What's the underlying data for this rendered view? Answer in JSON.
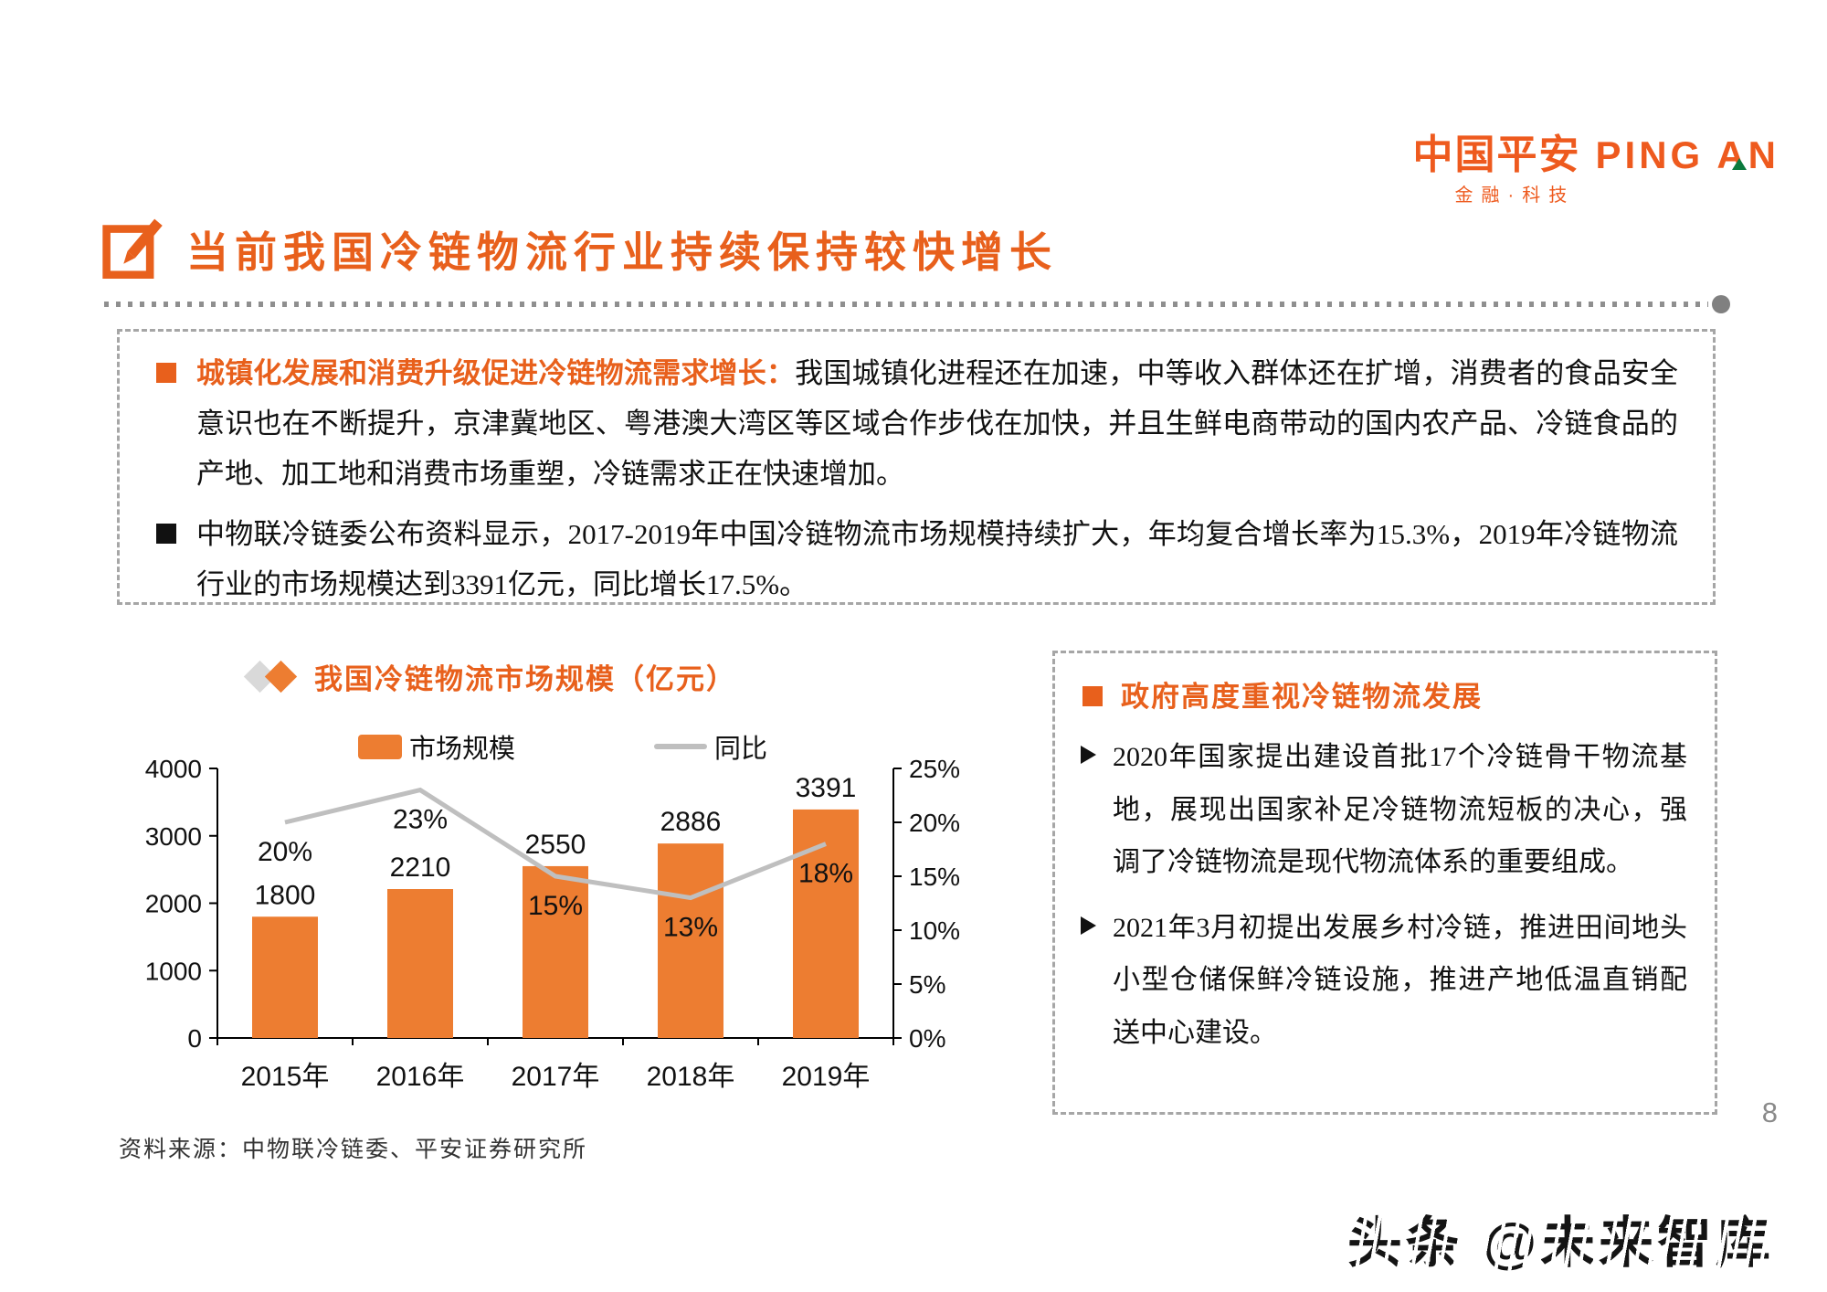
{
  "logo": {
    "zh": "中国平安",
    "en": "PING AN",
    "subtitle": "金融·科技"
  },
  "page_title": "当前我国冷链物流行业持续保持较快增长",
  "key_points_box": {
    "bullets": [
      {
        "lead": "城镇化发展和消费升级促进冷链物流需求增长：",
        "text": "我国城镇化进程还在加速，中等收入群体还在扩增，消费者的食品安全意识也在不断提升，京津冀地区、粤港澳大湾区等区域合作步伐在加快，并且生鲜电商带动的国内农产品、冷链食品的产地、加工地和消费市场重塑，冷链需求正在快速增加。"
      },
      {
        "lead": "",
        "text": "中物联冷链委公布资料显示，2017-2019年中国冷链物流市场规模持续扩大，年均复合增长率为15.3%，2019年冷链物流行业的市场规模达到3391亿元，同比增长17.5%。"
      }
    ]
  },
  "chart_data": {
    "type": "bar",
    "title": "我国冷链物流市场规模（亿元）",
    "categories": [
      "2015年",
      "2016年",
      "2017年",
      "2018年",
      "2019年"
    ],
    "series": [
      {
        "name": "市场规模",
        "type": "bar",
        "axis": "left",
        "color": "#ED7D31",
        "values": [
          1800,
          2210,
          2550,
          2886,
          3391
        ]
      },
      {
        "name": "同比",
        "type": "line",
        "axis": "right",
        "color": "#BFBFBF",
        "values": [
          20,
          23,
          15,
          13,
          18
        ],
        "labels": [
          "20%",
          "23%",
          "15%",
          "13%",
          "18%"
        ]
      }
    ],
    "left_axis": {
      "min": 0,
      "max": 4000,
      "ticks": [
        0,
        1000,
        2000,
        3000,
        4000
      ]
    },
    "right_axis": {
      "min": 0,
      "max": 25,
      "tick_step": 5,
      "tick_labels": [
        "0%",
        "5%",
        "10%",
        "15%",
        "20%",
        "25%"
      ]
    },
    "legend_position": "top",
    "grid": false
  },
  "gov_box": {
    "title": "政府高度重视冷链物流发展",
    "bullets": [
      "2020年国家提出建设首批17个冷链骨干物流基地，展现出国家补足冷链物流短板的决心，强调了冷链物流是现代物流体系的重要组成。",
      "2021年3月初提出发展乡村冷链，推进田间地头小型仓储保鲜冷链设施，推进产地低温直销配送中心建设。"
    ]
  },
  "footer": {
    "source": "资料来源：中物联冷链委、平安证券研究所",
    "page_number": "8",
    "watermark": "头条 @未来智库"
  },
  "colors": {
    "accent_orange": "#E8601C",
    "bar_orange": "#ED7D31",
    "line_gray": "#BFBFBF",
    "dash_border": "#A6A6A6"
  }
}
